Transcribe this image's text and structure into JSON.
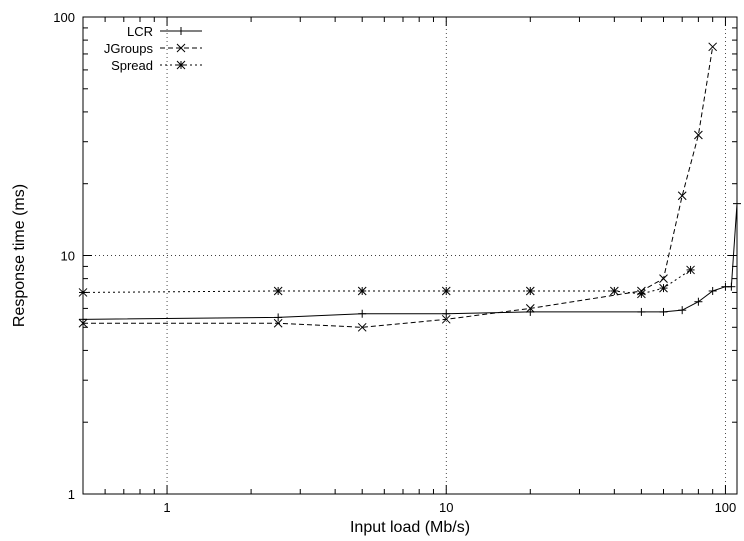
{
  "chart_data": {
    "type": "line",
    "title": "",
    "xlabel": "Input load (Mb/s)",
    "ylabel": "Response time (ms)",
    "x_scale": "log",
    "y_scale": "log",
    "xlim": [
      0.5,
      110
    ],
    "ylim": [
      1,
      100
    ],
    "x_ticks": [
      {
        "value": 1,
        "label": "1"
      },
      {
        "value": 10,
        "label": "10"
      },
      {
        "value": 100,
        "label": "100"
      }
    ],
    "y_ticks": [
      {
        "value": 1,
        "label": "1"
      },
      {
        "value": 10,
        "label": "10"
      },
      {
        "value": 100,
        "label": "100"
      }
    ],
    "grid": true,
    "legend_position": "top-left",
    "series": [
      {
        "name": "LCR",
        "marker": "plus",
        "dash": "solid",
        "points": [
          [
            0.5,
            5.4
          ],
          [
            2.5,
            5.5
          ],
          [
            5,
            5.7
          ],
          [
            10,
            5.7
          ],
          [
            20,
            5.8
          ],
          [
            50,
            5.8
          ],
          [
            60,
            5.8
          ],
          [
            70,
            5.9
          ],
          [
            80,
            6.4
          ],
          [
            90,
            7.1
          ],
          [
            100,
            7.4
          ],
          [
            105,
            7.4
          ],
          [
            110,
            16.5
          ]
        ]
      },
      {
        "name": "JGroups",
        "marker": "x",
        "dash": "dashed",
        "points": [
          [
            0.5,
            5.2
          ],
          [
            2.5,
            5.2
          ],
          [
            5,
            5.0
          ],
          [
            10,
            5.4
          ],
          [
            20,
            6.0
          ],
          [
            50,
            7.1
          ],
          [
            60,
            8.0
          ],
          [
            70,
            17.8
          ],
          [
            80,
            32.0
          ],
          [
            90,
            75.0
          ]
        ]
      },
      {
        "name": "Spread",
        "marker": "star",
        "dash": "dotted",
        "points": [
          [
            0.5,
            7.0
          ],
          [
            2.5,
            7.1
          ],
          [
            5,
            7.1
          ],
          [
            10,
            7.1
          ],
          [
            20,
            7.1
          ],
          [
            40,
            7.1
          ],
          [
            50,
            6.9
          ],
          [
            60,
            7.3
          ],
          [
            75,
            8.7
          ]
        ]
      }
    ]
  }
}
